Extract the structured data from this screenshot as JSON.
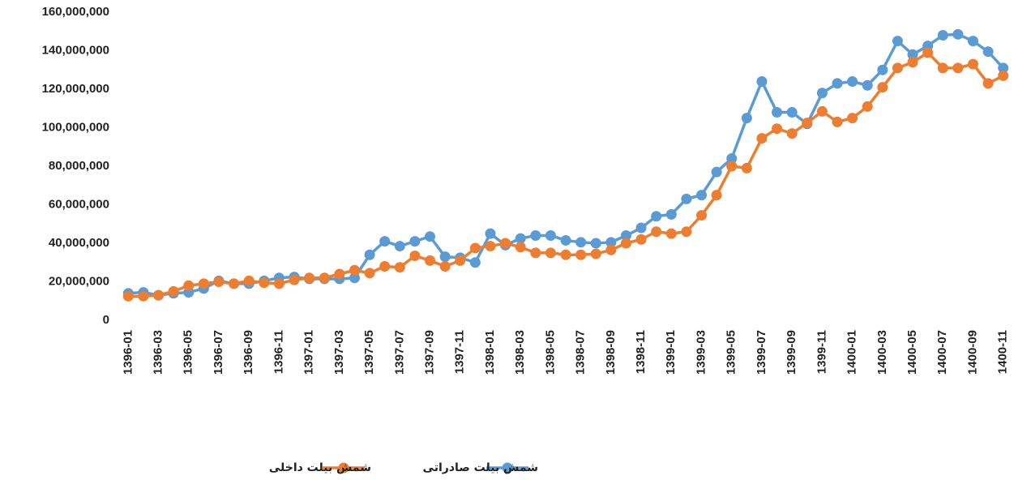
{
  "chart_data": {
    "type": "line",
    "categories": [
      "1396-01",
      null,
      "1396-03",
      null,
      "1396-05",
      null,
      "1396-07",
      null,
      "1396-09",
      null,
      "1396-11",
      null,
      "1397-01",
      null,
      "1397-03",
      null,
      "1397-05",
      null,
      "1397-07",
      null,
      "1397-09",
      null,
      "1397-11",
      null,
      "1398-01",
      null,
      "1398-03",
      null,
      "1398-05",
      null,
      "1398-07",
      null,
      "1398-09",
      null,
      "1398-11",
      null,
      "1399-01",
      null,
      "1399-03",
      null,
      "1399-05",
      null,
      "1399-07",
      null,
      "1399-09",
      null,
      "1399-11",
      null,
      "1400-01",
      null,
      "1400-03",
      null,
      "1400-05",
      null,
      "1400-07",
      null,
      "1400-09",
      null,
      "1400-11"
    ],
    "series": [
      {
        "name": "شمش بیلت داخلی",
        "color": "#ED7D31",
        "values": [
          12500000,
          12500000,
          13000000,
          15000000,
          18000000,
          19000000,
          20000000,
          19000000,
          20500000,
          19500000,
          19000000,
          21000000,
          22000000,
          22000000,
          24000000,
          26000000,
          24500000,
          28000000,
          27500000,
          33500000,
          31000000,
          28000000,
          31000000,
          37500000,
          38500000,
          40000000,
          38000000,
          35000000,
          35000000,
          34000000,
          34000000,
          34500000,
          36500000,
          40000000,
          42000000,
          46000000,
          45000000,
          46000000,
          54500000,
          65000000,
          80000000,
          79000000,
          94500000,
          99500000,
          97000000,
          102500000,
          108500000,
          103000000,
          105000000,
          111000000,
          121000000,
          131000000,
          134000000,
          139000000,
          131000000,
          131000000,
          133000000,
          123000000,
          127000000
        ]
      },
      {
        "name": "شمش بیلت صادراتی",
        "color": "#5B9BD5",
        "values": [
          14000000,
          14500000,
          13000000,
          14000000,
          14500000,
          16500000,
          20500000,
          19000000,
          19000000,
          20500000,
          22000000,
          22500000,
          21500000,
          21500000,
          21500000,
          22000000,
          34000000,
          41000000,
          38500000,
          41000000,
          43500000,
          33000000,
          32500000,
          30000000,
          45000000,
          39000000,
          42500000,
          44000000,
          44000000,
          41500000,
          40500000,
          40000000,
          40500000,
          44000000,
          48000000,
          54000000,
          55000000,
          63000000,
          65000000,
          77000000,
          84000000,
          105000000,
          124000000,
          108000000,
          108000000,
          102000000,
          118000000,
          123000000,
          124000000,
          122000000,
          130000000,
          145000000,
          138000000,
          142500000,
          148000000,
          148500000,
          145000000,
          139500000,
          131000000
        ]
      }
    ],
    "ylim": [
      0,
      160000000
    ],
    "yticks": [
      0,
      {
        "value": 20000000,
        "label": "20,000,000"
      },
      {
        "value": 40000000,
        "label": "40,000,000"
      },
      {
        "value": 60000000,
        "label": "60,000,000"
      },
      {
        "value": 80000000,
        "label": "80,000,000"
      },
      {
        "value": 100000000,
        "label": "100,000,000"
      },
      {
        "value": 120000000,
        "label": "120,000,000"
      },
      {
        "value": 140000000,
        "label": "140,000,000"
      },
      {
        "value": 160000000,
        "label": "160,000,000"
      }
    ],
    "legend": "bottom"
  }
}
